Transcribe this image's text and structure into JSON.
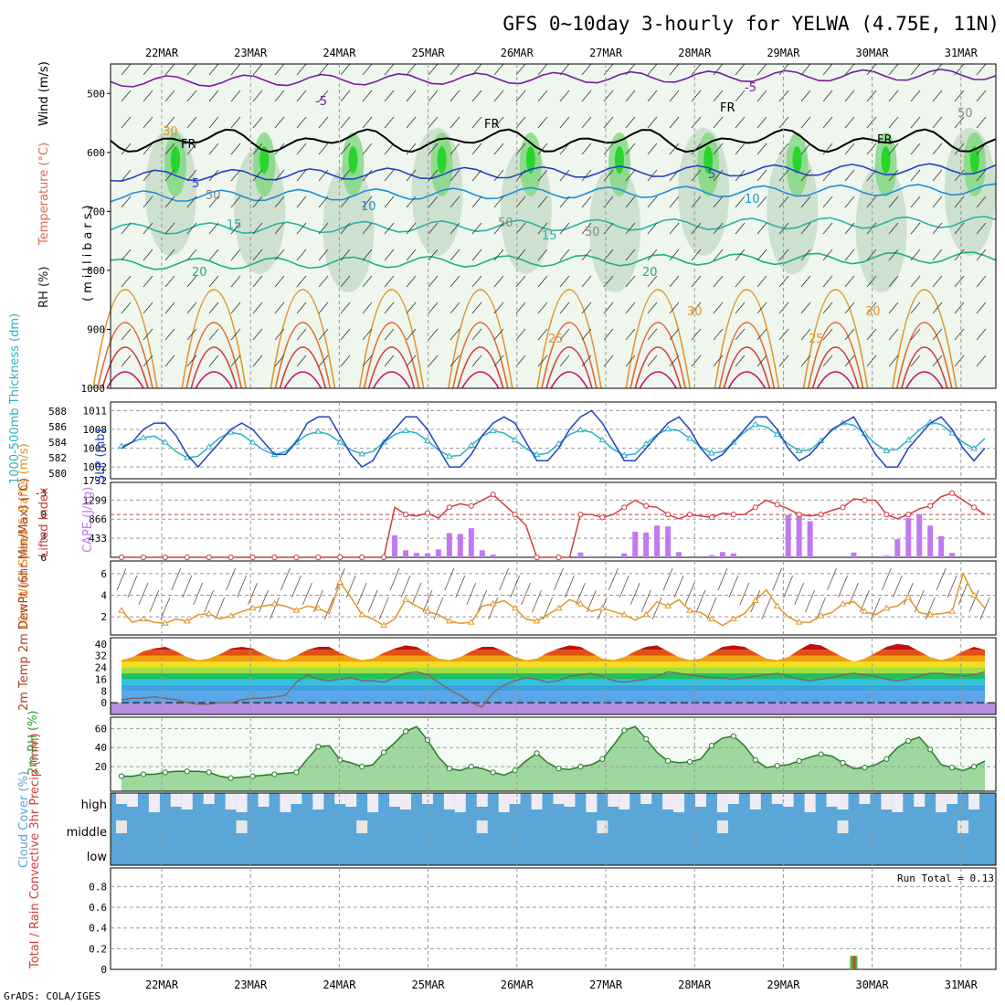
{
  "title": "GFS 0~10day 3-hourly for YELWA (4.75E, 11N)",
  "footer": "GrADS: COLA/IGES",
  "run_total": "Run Total = 0.13",
  "dates": [
    "22MAR",
    "23MAR",
    "24MAR",
    "25MAR",
    "26MAR",
    "27MAR",
    "28MAR",
    "29MAR",
    "30MAR",
    "31MAR"
  ],
  "colors": {
    "temp_red": "#d43c3c",
    "dew_gray": "#7a6a6a",
    "rh_green": "#3fbf3f",
    "cloud_blue": "#5aa6d8",
    "cape_purple": "#c079f0",
    "wind_orange": "#e0962a",
    "slp_blue": "#1f44c4",
    "thick_cyan": "#2ab3c4",
    "lifted_red": "#d43c3c"
  },
  "chart_data": [
    {
      "type": "heatmap",
      "name": "upper-air",
      "ylabel": "(millibars)",
      "ylabel_parts": [
        "RH (%)",
        "Temperature (°C)",
        "Wind (m/s)"
      ],
      "yticks": [
        500,
        600,
        700,
        800,
        900,
        1000
      ],
      "contour_labels": [
        "-5",
        "-5",
        "5",
        "5",
        "10",
        "10",
        "15",
        "15",
        "20",
        "20",
        "25",
        "25",
        "30",
        "30",
        "FR",
        "FR",
        "FR",
        "FR",
        "30",
        "50",
        "50",
        "50",
        "50"
      ]
    },
    {
      "type": "line",
      "name": "slp-thickness",
      "ylabel_left": "1000-500mb Thickness (dm)",
      "ylabel_right": "SLP (mb)",
      "left_ticks": [
        "588",
        "586",
        "584",
        "582",
        "580"
      ],
      "right_ticks": [
        "1011",
        "1008",
        "1005",
        "1002"
      ],
      "extra_ticks": [
        "1732"
      ],
      "x": [
        0,
        1,
        2,
        3,
        4,
        5,
        6,
        7,
        8,
        9,
        10,
        11,
        12,
        13,
        14,
        15,
        16,
        17,
        18,
        19,
        20,
        21,
        22,
        23,
        24,
        25,
        26,
        27,
        28,
        29,
        30,
        31,
        32,
        33,
        34,
        35,
        36,
        37,
        38,
        39,
        40,
        41,
        42,
        43,
        44,
        45,
        46,
        47,
        48,
        49,
        50,
        51,
        52,
        53,
        54,
        55,
        56,
        57,
        58,
        59,
        60,
        61,
        62,
        63,
        64,
        65,
        66,
        67,
        68,
        69,
        70,
        71,
        72,
        73,
        74,
        75,
        76,
        77,
        78,
        79
      ],
      "series": [
        {
          "name": "SLP",
          "values": [
            1005,
            1006,
            1008,
            1009,
            1009,
            1007,
            1004,
            1002,
            1004,
            1006,
            1008,
            1009,
            1008,
            1006,
            1004,
            1004,
            1006,
            1009,
            1010,
            1010,
            1007,
            1004,
            1002,
            1003,
            1006,
            1008,
            1010,
            1010,
            1008,
            1005,
            1002,
            1002,
            1004,
            1007,
            1009,
            1010,
            1009,
            1006,
            1003,
            1003,
            1005,
            1008,
            1010,
            1011,
            1009,
            1006,
            1003,
            1003,
            1005,
            1007,
            1009,
            1010,
            1008,
            1005,
            1003,
            1004,
            1006,
            1008,
            1010,
            1010,
            1008,
            1005,
            1003,
            1004,
            1006,
            1008,
            1009,
            1010,
            1007,
            1004,
            1002,
            1002,
            1005,
            1007,
            1009,
            1010,
            1008,
            1005,
            1003,
            1005
          ]
        },
        {
          "name": "Thickness",
          "values": [
            583.5,
            584,
            584.6,
            584.8,
            584,
            582.8,
            582,
            582.2,
            583.4,
            584.6,
            585.3,
            585,
            584,
            583,
            582.4,
            582.8,
            584,
            585,
            585.4,
            585,
            584,
            583,
            582.5,
            582.8,
            584,
            585,
            585.5,
            585.2,
            584.2,
            583,
            582.2,
            582.3,
            583.6,
            584.8,
            585.5,
            585.2,
            584.3,
            583.2,
            582.4,
            582.6,
            583.8,
            585,
            585.6,
            585.3,
            584.3,
            583.1,
            582.3,
            582.5,
            583.8,
            585,
            585.7,
            585.5,
            584.5,
            583.4,
            582.6,
            582.8,
            584,
            585.3,
            586.3,
            586,
            585,
            583.8,
            582.9,
            583,
            584.2,
            585.5,
            586.5,
            586.2,
            585.1,
            583.8,
            582.9,
            583.1,
            584.3,
            585.6,
            586.6,
            586.3,
            585.2,
            584,
            583.2,
            584.5
          ]
        }
      ]
    },
    {
      "type": "bar",
      "name": "cape-lifted",
      "ylabel_left": "Lifted Index",
      "ylabel_right": "CAPE (J/kg)",
      "left_ticks": [
        "-3",
        "0",
        "3",
        "6"
      ],
      "right_ticks": [
        "1299",
        "866",
        "433"
      ],
      "cape_values": [
        0,
        0,
        0,
        0,
        0,
        0,
        0,
        0,
        0,
        0,
        0,
        0,
        0,
        0,
        0,
        0,
        0,
        0,
        0,
        0,
        0,
        0,
        0,
        0,
        0,
        500,
        160,
        100,
        90,
        180,
        550,
        530,
        660,
        160,
        60,
        0,
        0,
        0,
        0,
        0,
        0,
        0,
        110,
        30,
        0,
        0,
        90,
        580,
        560,
        720,
        700,
        120,
        0,
        0,
        50,
        120,
        90,
        0,
        0,
        0,
        0,
        960,
        960,
        820,
        0,
        0,
        0,
        110,
        0,
        0,
        40,
        410,
        890,
        980,
        720,
        480,
        100,
        0,
        0,
        0,
        0,
        0,
        0,
        0,
        0,
        0,
        0
      ],
      "lifted_values": [
        6,
        6,
        6,
        6,
        6,
        6,
        6,
        6,
        6,
        6,
        6,
        6,
        6,
        6,
        6,
        6,
        6,
        6,
        6,
        6,
        6,
        6,
        6,
        6,
        6,
        -1,
        0,
        0.2,
        -0.2,
        0.5,
        -1,
        -1.5,
        -1.2,
        -2,
        -2.8,
        -1.4,
        0,
        1.5,
        6,
        6,
        6,
        6,
        0,
        0,
        0.4,
        0,
        -1,
        -2,
        -1.2,
        -1,
        0,
        0.6,
        0,
        0.2,
        0.4,
        -0.2,
        0,
        0,
        -1,
        -2,
        -1.4,
        -0.8,
        0,
        0.2,
        0,
        -0.6,
        -1,
        -2.2,
        -2,
        -2,
        0,
        0.6,
        0,
        -0.8,
        -1.2,
        -2.5,
        -3,
        -2,
        -1,
        0,
        0,
        -0.5,
        -1.5,
        -3,
        -2.4,
        -1,
        0.2,
        -0.8,
        -2,
        -2.6,
        -2.4,
        -1.2
      ]
    },
    {
      "type": "line",
      "name": "wind-10m",
      "ylabel": "10m Wind Speed & Barbs (m/s)",
      "yticks": [
        "6",
        "4",
        "2"
      ],
      "values": [
        2.6,
        1.5,
        1.8,
        1.5,
        1.4,
        1.8,
        1.6,
        2.2,
        2.3,
        1.8,
        2.1,
        2.5,
        2.8,
        3,
        3.2,
        3,
        2.6,
        3,
        2.8,
        2.3,
        5.2,
        3.8,
        2.2,
        1.8,
        1.2,
        1.8,
        3.6,
        3,
        2.5,
        2.2,
        1.6,
        1.4,
        1.5,
        3,
        3.2,
        3.5,
        2.8,
        1.8,
        1.6,
        2.2,
        2.8,
        3.6,
        3.2,
        2.5,
        2.8,
        2.5,
        2.2,
        1.7,
        2.2,
        3.4,
        3,
        3.6,
        2.6,
        2.4,
        1.8,
        1.2,
        1.8,
        2.3,
        3.5,
        4.5,
        3,
        2,
        1.5,
        1.5,
        2.1,
        2.4,
        3.2,
        3.4,
        2.5,
        2.2,
        2.8,
        3,
        3.8,
        2.4,
        2.2,
        2.3,
        2.5,
        6,
        4,
        2.8
      ]
    },
    {
      "type": "area",
      "name": "temp-dew",
      "ylabel": "2m Temp 2m DewPt (6hr Min/Max) (°C)",
      "yticks": [
        "40",
        "32",
        "24",
        "16",
        "8",
        "0"
      ],
      "temp_values": [
        29,
        31,
        35,
        37,
        38,
        35,
        31,
        29,
        30,
        33,
        37,
        38,
        37,
        33,
        30,
        29,
        32,
        36,
        38,
        38,
        34,
        31,
        29,
        30,
        34,
        37,
        39,
        38,
        34,
        30,
        29,
        31,
        35,
        38,
        38,
        35,
        31,
        29,
        30,
        34,
        37,
        39,
        38,
        34,
        30,
        29,
        31,
        35,
        38,
        39,
        35,
        31,
        29,
        30,
        34,
        38,
        39,
        38,
        34,
        30,
        29,
        31,
        36,
        40,
        39,
        35,
        31,
        28,
        30,
        34,
        38,
        40,
        39,
        35,
        31,
        29,
        31,
        35,
        38,
        36
      ],
      "dew_values": [
        2,
        3,
        3,
        4,
        3,
        2,
        0,
        -1,
        -1,
        0,
        0,
        2,
        3,
        3,
        4,
        5,
        14,
        19,
        16,
        15,
        16,
        17,
        15,
        15,
        14,
        17,
        20,
        21,
        19,
        14,
        9,
        5,
        0,
        -3,
        7,
        12,
        15,
        17,
        16,
        14,
        15,
        18,
        19,
        20,
        18,
        15,
        14,
        15,
        16,
        18,
        21,
        20,
        19,
        18,
        17,
        17,
        16,
        17,
        18,
        19,
        20,
        18,
        16,
        15,
        16,
        17,
        19,
        20,
        19,
        18,
        16,
        15,
        16,
        18,
        20,
        20,
        19,
        18,
        19,
        21,
        21,
        20
      ]
    },
    {
      "type": "area",
      "name": "rh-2m",
      "ylabel": "2m RH (%)",
      "yticks": [
        "60",
        "40",
        "20"
      ],
      "values": [
        10,
        10,
        12,
        12,
        14,
        15,
        15,
        15,
        14,
        10,
        8,
        9,
        10,
        11,
        12,
        13,
        14,
        28,
        41,
        42,
        27,
        24,
        20,
        22,
        35,
        45,
        57,
        62,
        48,
        30,
        18,
        16,
        20,
        18,
        14,
        11,
        16,
        26,
        34,
        24,
        18,
        17,
        20,
        22,
        28,
        42,
        58,
        62,
        49,
        35,
        26,
        24,
        25,
        28,
        42,
        50,
        52,
        42,
        27,
        19,
        21,
        22,
        26,
        30,
        33,
        31,
        24,
        18,
        19,
        22,
        28,
        40,
        47,
        51,
        38,
        22,
        19,
        16,
        20,
        26,
        30,
        44,
        57,
        62,
        62
      ]
    },
    {
      "type": "heatmap",
      "name": "cloud-cover",
      "ylabel": "Cloud Cover (%)",
      "levels": [
        "high",
        "middle",
        "low"
      ]
    },
    {
      "type": "bar",
      "name": "precip",
      "ylabel": "Total / Rain Convective 3hr Precip (mm)",
      "yticks": [
        "0.8",
        "0.6",
        "0.4",
        "0.2",
        "0"
      ],
      "values": [
        0,
        0,
        0,
        0,
        0,
        0,
        0,
        0,
        0,
        0,
        0,
        0,
        0,
        0,
        0,
        0,
        0,
        0,
        0,
        0,
        0,
        0,
        0,
        0,
        0,
        0,
        0,
        0,
        0,
        0,
        0,
        0,
        0,
        0,
        0,
        0,
        0,
        0,
        0,
        0,
        0,
        0,
        0,
        0,
        0,
        0,
        0,
        0,
        0,
        0,
        0,
        0,
        0,
        0,
        0,
        0,
        0,
        0,
        0,
        0,
        0,
        0,
        0,
        0,
        0,
        0,
        0,
        0.13,
        0,
        0,
        0,
        0,
        0,
        0,
        0,
        0,
        0,
        0,
        0,
        0,
        0
      ]
    }
  ]
}
